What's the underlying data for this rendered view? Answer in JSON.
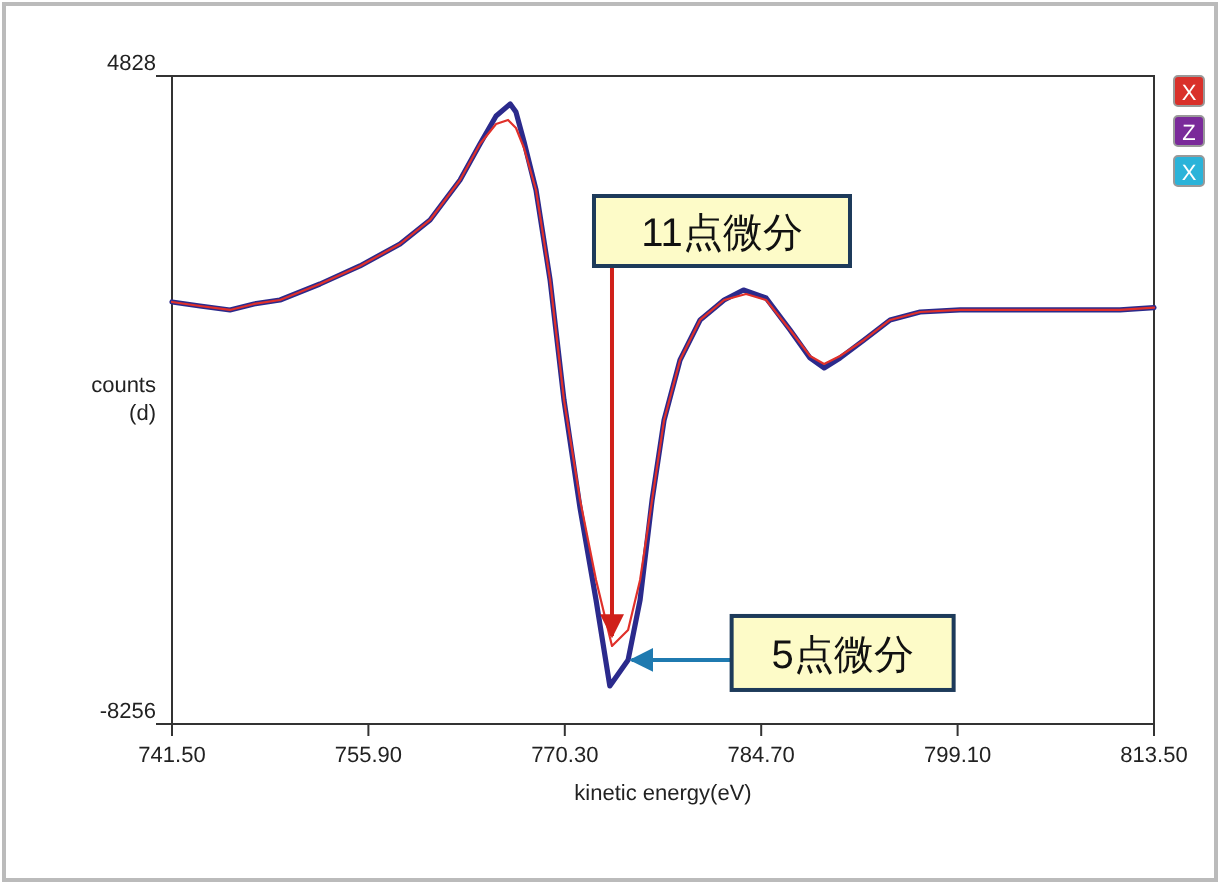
{
  "chart_data": {
    "type": "line",
    "xlabel": "kinetic energy(eV)",
    "ylabel": "counts (d)",
    "xlim": [
      741.5,
      813.5
    ],
    "ylim": [
      -8256,
      4828
    ],
    "xticks": [
      {
        "value": 741.5,
        "label": "741.50"
      },
      {
        "value": 755.9,
        "label": "755.90"
      },
      {
        "value": 770.3,
        "label": "770.30"
      },
      {
        "value": 784.7,
        "label": "784.70"
      },
      {
        "value": 799.1,
        "label": "799.10"
      },
      {
        "value": 813.5,
        "label": "813.50"
      }
    ],
    "yticks": [
      4828,
      -8256
    ],
    "grid": false,
    "series": [
      {
        "color": "#e0302a",
        "x": [
          741.5,
          743.55,
          745.75,
          747.51,
          749.42,
          752.35,
          755.28,
          758.22,
          760.42,
          762.62,
          764.08,
          765.26,
          766.14,
          766.72,
          767.31,
          768.19,
          769.22,
          770.24,
          771.42,
          772.59,
          773.76,
          774.94,
          775.82,
          776.7,
          777.58,
          778.75,
          780.22,
          781.98,
          783.59,
          785.06,
          786.82,
          788.28,
          789.31,
          790.48,
          792.24,
          794.15,
          796.35,
          799.28,
          802.21,
          806.61,
          811.01,
          813.5
        ],
        "values": [
          265,
          184,
          104,
          225,
          305,
          628,
          992,
          1436,
          1921,
          2728,
          3455,
          3859,
          3940,
          3778,
          3374,
          2526,
          709,
          -1714,
          -3733,
          -5348,
          -6680,
          -6357,
          -5348,
          -3733,
          -2117,
          -906,
          -98,
          305,
          426,
          305,
          -300,
          -825,
          -987,
          -825,
          -502,
          -98,
          63,
          104,
          104,
          104,
          104,
          150
        ]
      },
      {
        "color": "#2b2a8c",
        "x": [
          741.5,
          743.55,
          745.75,
          747.51,
          749.42,
          752.35,
          755.28,
          758.22,
          760.42,
          762.62,
          764.08,
          765.26,
          766.3,
          766.72,
          767.31,
          768.19,
          769.22,
          770.24,
          771.42,
          772.59,
          773.6,
          774.94,
          775.82,
          776.7,
          777.58,
          778.75,
          780.22,
          781.98,
          783.4,
          785.06,
          786.82,
          788.28,
          789.31,
          790.48,
          792.24,
          794.15,
          796.35,
          799.28,
          802.21,
          806.61,
          811.01,
          813.5
        ],
        "values": [
          265,
          184,
          104,
          225,
          305,
          628,
          992,
          1436,
          1921,
          2728,
          3455,
          4020,
          4263,
          4100,
          3500,
          2526,
          709,
          -1714,
          -3900,
          -5752,
          -7488,
          -6963,
          -5752,
          -3733,
          -2117,
          -906,
          -98,
          305,
          507,
          346,
          -300,
          -865,
          -1067,
          -865,
          -502,
          -98,
          63,
          104,
          104,
          104,
          104,
          150
        ]
      }
    ],
    "annotations": [
      {
        "text": "11点微分",
        "x": 773.76,
        "y": -6478
      },
      {
        "text": "5点微分",
        "x": 775.2,
        "y": -6963
      },
      "X",
      "Z",
      "X"
    ]
  }
}
